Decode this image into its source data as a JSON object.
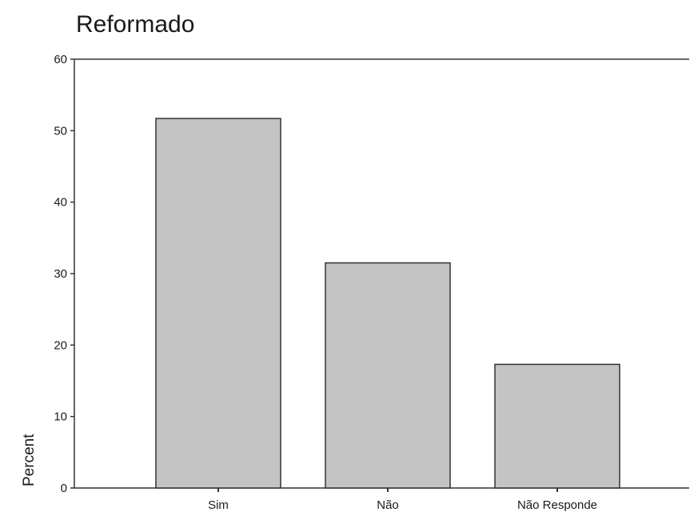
{
  "chart_data": {
    "type": "bar",
    "title": "Reformado",
    "ylabel": "Percent",
    "xlabel": "",
    "categories": [
      "Sim",
      "Não",
      "Não Responde"
    ],
    "values": [
      51.7,
      31.5,
      17.3
    ],
    "ylim": [
      0,
      60
    ],
    "yticks": [
      "0",
      "10",
      "20",
      "30",
      "40",
      "50",
      "60"
    ],
    "grid": false,
    "bar_color": "#c4c4c4",
    "bar_edge_color": "#333333",
    "axis_color": "#333333"
  }
}
